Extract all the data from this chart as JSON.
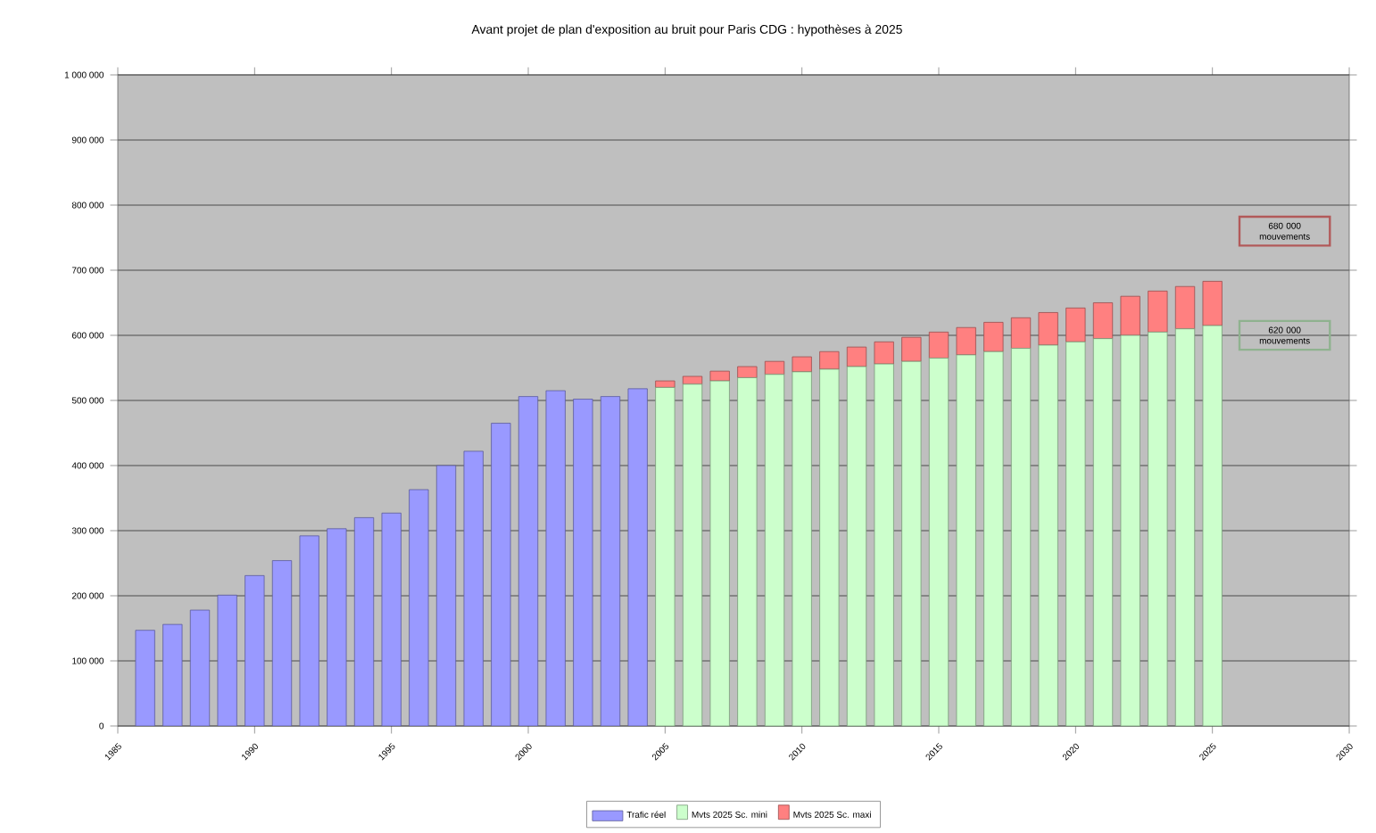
{
  "chart_data": {
    "type": "bar",
    "title": "Avant projet de plan d'exposition au bruit pour Paris CDG : hypothèses à 2025",
    "stacked": true,
    "x": [
      1986,
      1987,
      1988,
      1989,
      1990,
      1991,
      1992,
      1993,
      1994,
      1995,
      1996,
      1997,
      1998,
      1999,
      2000,
      2001,
      2002,
      2003,
      2004,
      2005,
      2006,
      2007,
      2008,
      2009,
      2010,
      2011,
      2012,
      2013,
      2014,
      2015,
      2016,
      2017,
      2018,
      2019,
      2020,
      2021,
      2022,
      2023,
      2024,
      2025
    ],
    "series": [
      {
        "name": "Trafic réel",
        "color": "#9999ff",
        "values": [
          147000,
          156000,
          178000,
          201000,
          231000,
          254000,
          292000,
          303000,
          320000,
          327000,
          363000,
          400000,
          422000,
          465000,
          506000,
          515000,
          502000,
          506000,
          518000,
          null,
          null,
          null,
          null,
          null,
          null,
          null,
          null,
          null,
          null,
          null,
          null,
          null,
          null,
          null,
          null,
          null,
          null,
          null,
          null,
          null
        ]
      },
      {
        "name": "Mvts 2025 Sc. mini",
        "color": "#ccffcc",
        "values": [
          null,
          null,
          null,
          null,
          null,
          null,
          null,
          null,
          null,
          null,
          null,
          null,
          null,
          null,
          null,
          null,
          null,
          null,
          null,
          520000,
          525000,
          530000,
          535000,
          540000,
          544000,
          548000,
          552000,
          556000,
          560000,
          565000,
          570000,
          575000,
          580000,
          585000,
          590000,
          595000,
          600000,
          605000,
          610000,
          615000
        ]
      },
      {
        "name": "Mvts 2025 Sc. maxi",
        "color": "#ff8080",
        "values": [
          null,
          null,
          null,
          null,
          null,
          null,
          null,
          null,
          null,
          null,
          null,
          null,
          null,
          null,
          null,
          null,
          null,
          null,
          null,
          10000,
          12000,
          15000,
          17000,
          20000,
          23000,
          27000,
          30000,
          34000,
          37000,
          40000,
          42000,
          45000,
          47000,
          50000,
          52000,
          55000,
          60000,
          63000,
          65000,
          68000
        ]
      }
    ],
    "xlim": [
      1985,
      2030
    ],
    "xticks": [
      1985,
      1990,
      1995,
      2000,
      2005,
      2010,
      2015,
      2020,
      2025,
      2030
    ],
    "ylim": [
      0,
      1000000
    ],
    "yticks": [
      0,
      {
        "value": 100000,
        "label": "100 000"
      },
      {
        "value": 200000,
        "label": "200 000"
      },
      {
        "value": 300000,
        "label": "300 000"
      },
      {
        "value": 400000,
        "label": "400 000"
      },
      {
        "value": 500000,
        "label": "500 000"
      },
      {
        "value": 600000,
        "label": "600 000"
      },
      {
        "value": 700000,
        "label": "700 000"
      },
      {
        "value": 800000,
        "label": "800 000"
      },
      {
        "value": 900000,
        "label": "900 000"
      },
      {
        "value": 1000000,
        "label": "1 000 000"
      }
    ],
    "grid": "y",
    "legend": "bottom",
    "annotations": [
      "680 000 mouvements",
      "620 000 mouvements"
    ]
  }
}
